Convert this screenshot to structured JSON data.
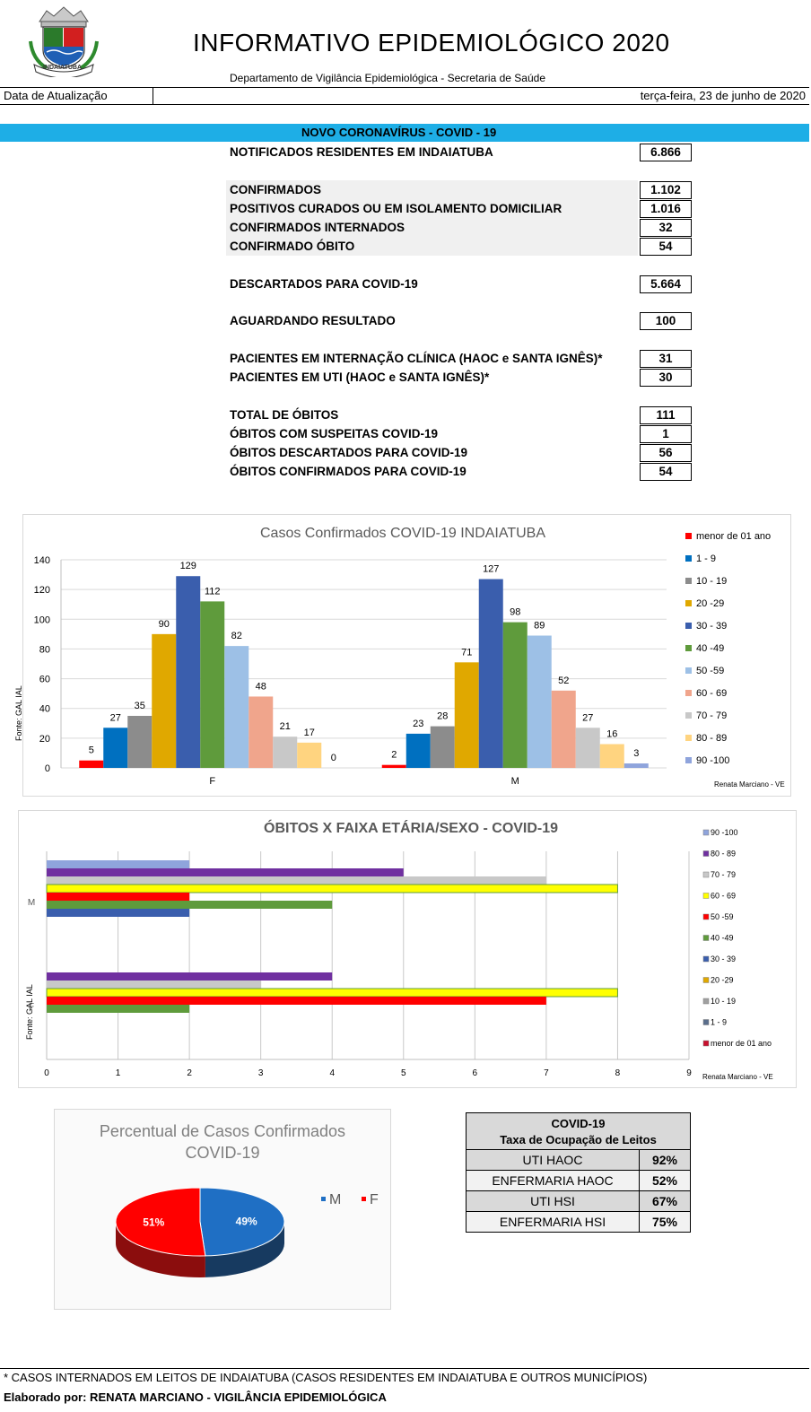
{
  "header": {
    "title": "INFORMATIVO EPIDEMIOLÓGICO 2020",
    "subtitle": "Departamento de Vigilância Epidemiológica - Secretaria de Saúde",
    "update_label": "Data de Atualização",
    "update_date": "terça-feira, 23 de junho de 2020",
    "logo_text": "INDAIATUBA"
  },
  "section": {
    "title": "NOVO CORONAVÍRUS - COVID - 19"
  },
  "stats": [
    {
      "label": "NOTIFICADOS RESIDENTES EM INDAIATUBA",
      "value": "6.866"
    },
    {
      "label": "CONFIRMADOS",
      "value": "1.102"
    },
    {
      "label": "POSITIVOS CURADOS OU EM ISOLAMENTO DOMICILIAR",
      "value": "1.016"
    },
    {
      "label": "CONFIRMADOS INTERNADOS",
      "value": "32"
    },
    {
      "label": "CONFIRMADO ÓBITO",
      "value": "54"
    },
    {
      "label": "DESCARTADOS PARA COVID-19",
      "value": "5.664"
    },
    {
      "label": "AGUARDANDO RESULTADO",
      "value": "100"
    },
    {
      "label": "PACIENTES EM INTERNAÇÃO CLÍNICA (HAOC e SANTA IGNÊS)*",
      "value": "31"
    },
    {
      "label": "PACIENTES EM UTI (HAOC e SANTA IGNÊS)*",
      "value": "30"
    },
    {
      "label": "TOTAL DE ÓBITOS",
      "value": "111"
    },
    {
      "label": "ÓBITOS COM SUSPEITAS COVID-19",
      "value": "1"
    },
    {
      "label": "ÓBITOS DESCARTADOS PARA COVID-19",
      "value": "56"
    },
    {
      "label": "ÓBITOS CONFIRMADOS PARA COVID-19",
      "value": "54"
    }
  ],
  "chart_data": [
    {
      "type": "bar",
      "title": "Casos Confirmados COVID-19 INDAIATUBA",
      "source": "Fonte: GAL IAL",
      "credit": "Renata Marciano - VE",
      "categories": [
        "F",
        "M"
      ],
      "ylim": [
        0,
        140
      ],
      "yticks": [
        0,
        20,
        40,
        60,
        80,
        100,
        120,
        140
      ],
      "legend_position": "right",
      "series": [
        {
          "name": "menor de 01 ano",
          "color": "#ff0000",
          "values": [
            5,
            2
          ]
        },
        {
          "name": "1 - 9",
          "color": "#0070c0",
          "values": [
            27,
            23
          ]
        },
        {
          "name": "10 - 19",
          "color": "#8c8c8c",
          "values": [
            35,
            28
          ]
        },
        {
          "name": "20 -29",
          "color": "#e0a800",
          "values": [
            90,
            71
          ]
        },
        {
          "name": "30 - 39",
          "color": "#3a5ead",
          "values": [
            129,
            127
          ]
        },
        {
          "name": "40 -49",
          "color": "#5f9b3c",
          "values": [
            112,
            98
          ]
        },
        {
          "name": "50 -59",
          "color": "#9dc0e6",
          "values": [
            82,
            89
          ]
        },
        {
          "name": "60 - 69",
          "color": "#f0a58c",
          "values": [
            48,
            52
          ]
        },
        {
          "name": "70 - 79",
          "color": "#c8c8c8",
          "values": [
            21,
            27
          ]
        },
        {
          "name": "80 - 89",
          "color": "#ffd480",
          "values": [
            17,
            16
          ]
        },
        {
          "name": "90 -100",
          "color": "#8fa4dc",
          "values": [
            0,
            3
          ]
        }
      ]
    },
    {
      "type": "bar",
      "orientation": "horizontal",
      "title": "ÓBITOS X FAIXA ETÁRIA/SEXO - COVID-19",
      "source": "Fonte: GAL IAL",
      "credit": "Renata Marciano - VE",
      "categories": [
        "M",
        "F"
      ],
      "xlim": [
        0,
        9
      ],
      "xticks": [
        0,
        1,
        2,
        3,
        4,
        5,
        6,
        7,
        8,
        9
      ],
      "legend_position": "right",
      "series": [
        {
          "name": "90 -100",
          "color": "#8fa4dc",
          "values": [
            2,
            0
          ]
        },
        {
          "name": "80 - 89",
          "color": "#7030a0",
          "values": [
            5,
            4
          ]
        },
        {
          "name": "70 - 79",
          "color": "#c8c8c8",
          "values": [
            7,
            3
          ]
        },
        {
          "name": "60 - 69",
          "color": "#ffff00",
          "values": [
            8,
            8
          ]
        },
        {
          "name": "50 -59",
          "color": "#ff0000",
          "values": [
            2,
            7
          ]
        },
        {
          "name": "40 -49",
          "color": "#5f9b3c",
          "values": [
            4,
            2
          ]
        },
        {
          "name": "30 - 39",
          "color": "#3a5ead",
          "values": [
            2,
            0
          ]
        },
        {
          "name": "20 -29",
          "color": "#e0a800",
          "values": [
            0,
            0
          ]
        },
        {
          "name": "10 - 19",
          "color": "#a0a0a0",
          "values": [
            0,
            0
          ]
        },
        {
          "name": "1 - 9",
          "color": "#5a6e8c",
          "values": [
            0,
            0
          ]
        },
        {
          "name": "menor de 01 ano",
          "color": "#c8102e",
          "values": [
            0,
            0
          ]
        }
      ]
    },
    {
      "type": "pie",
      "title": "Percentual de Casos Confirmados COVID-19",
      "title_line1": "Percentual de Casos Confirmados",
      "title_line2": "COVID-19",
      "categories": [
        "M",
        "F"
      ],
      "values": [
        49,
        51
      ],
      "labels": [
        "49%",
        "51%"
      ],
      "colors": [
        "#1f6fc4",
        "#ff0000"
      ],
      "legend_position": "right"
    }
  ],
  "occupancy": {
    "title1": "COVID-19",
    "title2": "Taxa de Ocupação de Leitos",
    "rows": [
      {
        "label": "UTI HAOC",
        "value": "92%"
      },
      {
        "label": "ENFERMARIA HAOC",
        "value": "52%"
      },
      {
        "label": "UTI HSI",
        "value": "67%"
      },
      {
        "label": "ENFERMARIA HSI",
        "value": "75%"
      }
    ]
  },
  "footer": {
    "note": "* CASOS INTERNADOS EM LEITOS DE INDAIATUBA (CASOS RESIDENTES EM INDAIATUBA E OUTROS MUNICÍPIOS)",
    "credit": "Elaborado por: RENATA MARCIANO - VIGILÂNCIA EPIDEMIOLÓGICA"
  }
}
